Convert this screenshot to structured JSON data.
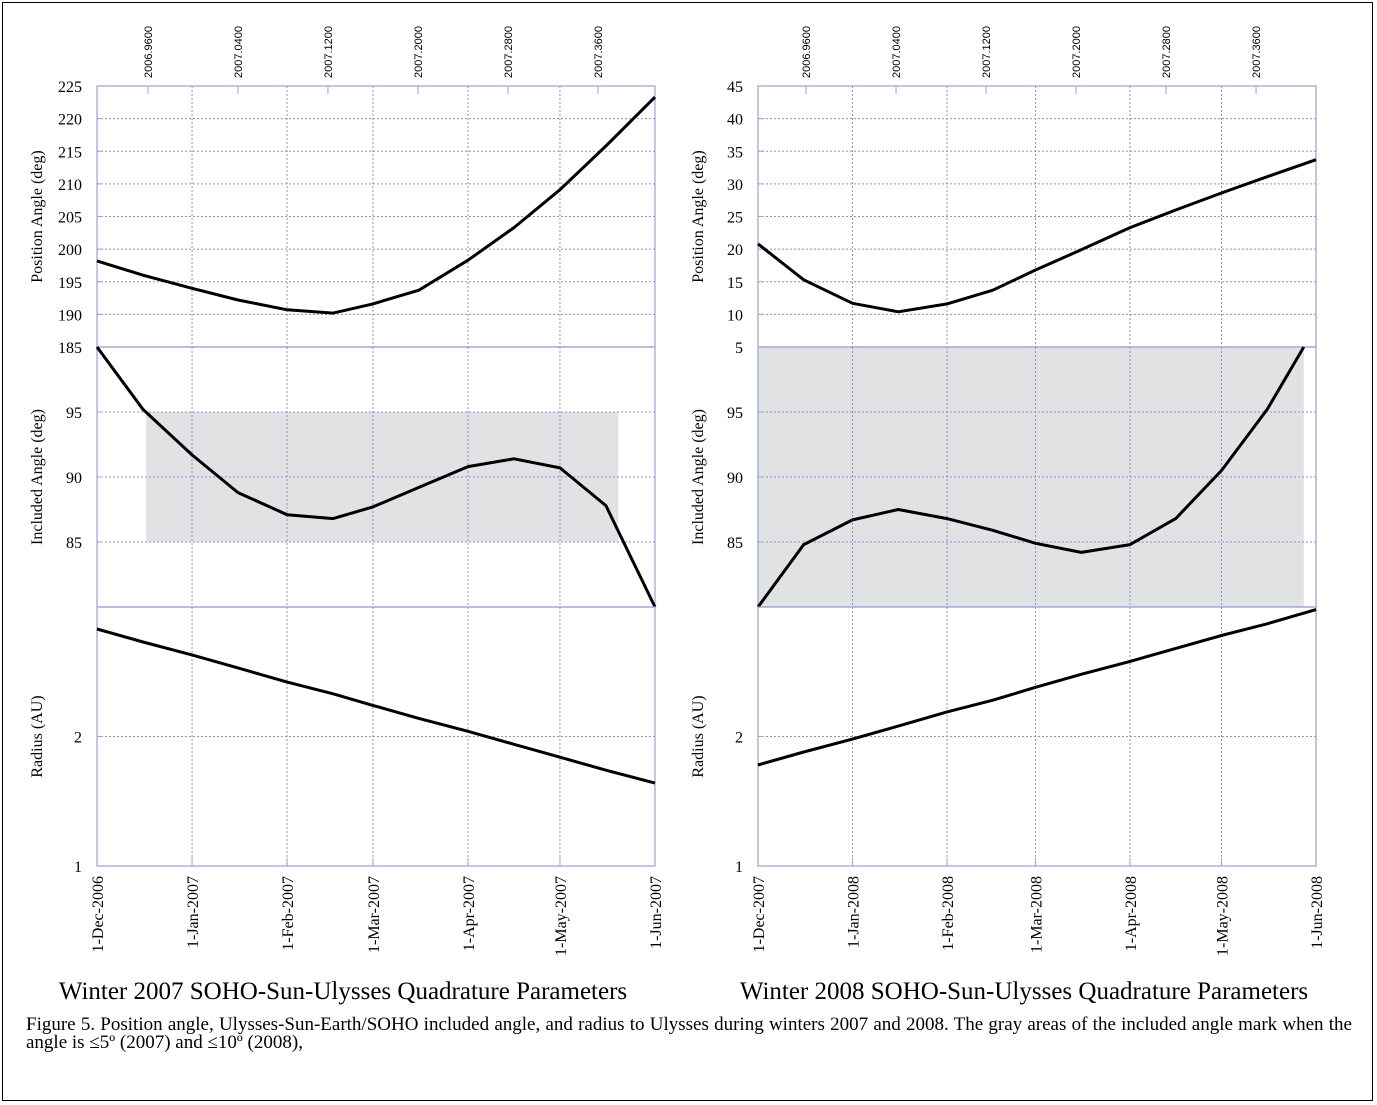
{
  "chart_data": [
    {
      "type": "line",
      "title": "Winter 2007 SOHO-Sun-Ulysses Quadrature Parameters",
      "grid": true,
      "xlim": [
        "2006-12-01",
        "2007-06-01"
      ],
      "xticks": [
        {
          "value": "2006-12-01",
          "label": "1-Dec-2006"
        },
        {
          "value": "2007-01-01",
          "label": "1-Jan-2007"
        },
        {
          "value": "2007-02-01",
          "label": "1-Feb-2007"
        },
        {
          "value": "2007-03-01",
          "label": "1-Mar-2007"
        },
        {
          "value": "2007-04-01",
          "label": "1-Apr-2007"
        },
        {
          "value": "2007-05-01",
          "label": "1-May-2007"
        },
        {
          "value": "2007-06-01",
          "label": "1-Jun-2007"
        }
      ],
      "x2lim": [
        2006.9147,
        2007.4107
      ],
      "x2ticks": [
        {
          "value": 2006.96,
          "label": "2006.9600"
        },
        {
          "value": 2007.04,
          "label": "2007.0400"
        },
        {
          "value": 2007.12,
          "label": "2007.1200"
        },
        {
          "value": 2007.2,
          "label": "2007.2000"
        },
        {
          "value": 2007.28,
          "label": "2007.2800"
        },
        {
          "value": 2007.36,
          "label": "2007.3600"
        }
      ],
      "panels": [
        {
          "ylabel": "Position Angle (deg)",
          "ylim": [
            185,
            225
          ],
          "yticks": [
            185,
            190,
            195,
            200,
            205,
            210,
            215,
            220,
            225
          ],
          "series": [
            {
              "color": "#000000",
              "x": [
                "2006-12-01",
                "2006-12-16",
                "2007-01-01",
                "2007-01-16",
                "2007-02-01",
                "2007-02-16",
                "2007-03-01",
                "2007-03-16",
                "2007-04-01",
                "2007-04-16",
                "2007-05-01",
                "2007-05-16",
                "2007-06-01"
              ],
              "values": [
                198.2,
                196.0,
                194.0,
                192.2,
                190.7,
                190.2,
                191.6,
                193.7,
                198.3,
                203.3,
                209.1,
                215.8,
                223.3
              ]
            }
          ]
        },
        {
          "ylabel": "Included Angle (deg)",
          "ylim": [
            80,
            100
          ],
          "yticks": [
            85,
            90,
            95
          ],
          "shade": {
            "x": [
              "2006-12-17",
              "2007-05-20"
            ],
            "y": [
              85,
              95
            ],
            "color": "#e1e2e3"
          },
          "series": [
            {
              "color": "#000000",
              "x": [
                "2006-12-01",
                "2006-12-16",
                "2007-01-01",
                "2007-01-16",
                "2007-02-01",
                "2007-02-16",
                "2007-03-01",
                "2007-03-16",
                "2007-04-01",
                "2007-04-16",
                "2007-05-01",
                "2007-05-16",
                "2007-06-01"
              ],
              "values": [
                100,
                95.2,
                91.7,
                88.8,
                87.1,
                86.8,
                87.7,
                89.2,
                90.8,
                91.4,
                90.7,
                87.8,
                80
              ]
            }
          ]
        },
        {
          "ylabel": "Radius (AU)",
          "ylim": [
            1,
            3
          ],
          "yticks": [
            1,
            2
          ],
          "series": [
            {
              "color": "#000000",
              "x": [
                "2006-12-01",
                "2006-12-16",
                "2007-01-01",
                "2007-01-16",
                "2007-02-01",
                "2007-02-16",
                "2007-03-01",
                "2007-03-16",
                "2007-04-01",
                "2007-04-16",
                "2007-05-01",
                "2007-05-16",
                "2007-06-01"
              ],
              "values": [
                2.83,
                2.73,
                2.63,
                2.53,
                2.42,
                2.33,
                2.24,
                2.14,
                2.04,
                1.94,
                1.84,
                1.74,
                1.64
              ]
            }
          ]
        }
      ]
    },
    {
      "type": "line",
      "title": "Winter 2008 SOHO-Sun-Ulysses Quadrature Parameters",
      "grid": true,
      "xlim": [
        "2007-12-01",
        "2008-06-01"
      ],
      "xticks": [
        {
          "value": "2007-12-01",
          "label": "1-Dec-2007"
        },
        {
          "value": "2008-01-01",
          "label": "1-Jan-2008"
        },
        {
          "value": "2008-02-01",
          "label": "1-Feb-2008"
        },
        {
          "value": "2008-03-01",
          "label": "1-Mar-2008"
        },
        {
          "value": "2008-04-01",
          "label": "1-Apr-2008"
        },
        {
          "value": "2008-05-01",
          "label": "1-May-2008"
        },
        {
          "value": "2008-06-01",
          "label": "1-Jun-2008"
        }
      ],
      "x2lim": [
        2006.9173,
        2007.4133
      ],
      "x2ticks": [
        {
          "value": 2006.96,
          "label": "2006.9600"
        },
        {
          "value": 2007.04,
          "label": "2007.0400"
        },
        {
          "value": 2007.12,
          "label": "2007.1200"
        },
        {
          "value": 2007.2,
          "label": "2007.2000"
        },
        {
          "value": 2007.28,
          "label": "2007.2800"
        },
        {
          "value": 2007.36,
          "label": "2007.3600"
        }
      ],
      "panels": [
        {
          "ylabel": "Position Angle (deg)",
          "ylim": [
            5,
            45
          ],
          "yticks": [
            5,
            10,
            15,
            20,
            25,
            30,
            35,
            40,
            45
          ],
          "series": [
            {
              "color": "#000000",
              "x": [
                "2007-12-01",
                "2007-12-16",
                "2008-01-01",
                "2008-01-16",
                "2008-02-01",
                "2008-02-16",
                "2008-03-01",
                "2008-03-16",
                "2008-04-01",
                "2008-04-16",
                "2008-05-01",
                "2008-05-16",
                "2008-06-01"
              ],
              "values": [
                20.8,
                15.3,
                11.7,
                10.4,
                11.6,
                13.7,
                16.8,
                19.9,
                23.3,
                26.0,
                28.6,
                31.1,
                33.7
              ]
            }
          ]
        },
        {
          "ylabel": "Included Angle (deg)",
          "ylim": [
            80,
            100
          ],
          "yticks": [
            85,
            90,
            95
          ],
          "shade": {
            "x": [
              "2007-12-01",
              "2008-05-28"
            ],
            "y": [
              80,
              100
            ],
            "color": "#e1e2e3"
          },
          "series": [
            {
              "color": "#000000",
              "x": [
                "2007-12-01",
                "2007-12-16",
                "2008-01-01",
                "2008-01-16",
                "2008-02-01",
                "2008-02-16",
                "2008-03-01",
                "2008-03-16",
                "2008-04-01",
                "2008-04-16",
                "2008-05-01",
                "2008-05-16",
                "2008-05-28"
              ],
              "values": [
                80,
                84.8,
                86.7,
                87.5,
                86.8,
                85.9,
                84.9,
                84.2,
                84.8,
                86.8,
                90.5,
                95.2,
                100
              ]
            }
          ]
        },
        {
          "ylabel": "Radius (AU)",
          "ylim": [
            1,
            3
          ],
          "yticks": [
            1,
            2
          ],
          "series": [
            {
              "color": "#000000",
              "x": [
                "2007-12-01",
                "2007-12-16",
                "2008-01-01",
                "2008-01-16",
                "2008-02-01",
                "2008-02-16",
                "2008-03-01",
                "2008-03-16",
                "2008-04-01",
                "2008-04-16",
                "2008-05-01",
                "2008-05-16",
                "2008-06-01"
              ],
              "values": [
                1.78,
                1.88,
                1.98,
                2.08,
                2.19,
                2.28,
                2.38,
                2.48,
                2.58,
                2.68,
                2.78,
                2.87,
                2.98
              ]
            }
          ]
        }
      ]
    }
  ],
  "caption": "Figure 5. Position angle, Ulysses-Sun-Earth/SOHO included angle, and radius to Ulysses during winters 2007 and 2008. The gray areas of the included angle mark when the angle is ≤5º (2007) and ≤10º (2008),"
}
